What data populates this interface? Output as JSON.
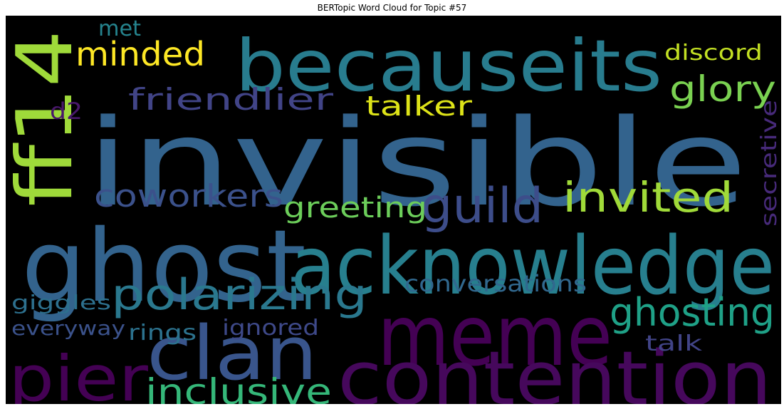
{
  "title": "BERTopic Word Cloud for Topic #57",
  "words": [
    {
      "text": "invisible",
      "color": "#33638d"
    },
    {
      "text": "ghost",
      "color": "#33638d"
    },
    {
      "text": "acknowledge",
      "color": "#277f8e"
    },
    {
      "text": "meme",
      "color": "#440154"
    },
    {
      "text": "becauseits",
      "color": "#287c8e"
    },
    {
      "text": "contention",
      "color": "#46085c"
    },
    {
      "text": "clan",
      "color": "#39558c"
    },
    {
      "text": "ff14",
      "color": "#9fda3a"
    },
    {
      "text": "pier",
      "color": "#440154"
    },
    {
      "text": "polarizing",
      "color": "#2a788e"
    },
    {
      "text": "guild",
      "color": "#3d4d8a"
    },
    {
      "text": "invited",
      "color": "#a0da39"
    },
    {
      "text": "ghosting",
      "color": "#1fa187"
    },
    {
      "text": "inclusive",
      "color": "#35b779"
    },
    {
      "text": "coworkers",
      "color": "#3b518b"
    },
    {
      "text": "friendlier",
      "color": "#414487"
    },
    {
      "text": "glory",
      "color": "#7ad151"
    },
    {
      "text": "minded",
      "color": "#fde725"
    },
    {
      "text": "greeting",
      "color": "#6ccd5a"
    },
    {
      "text": "talker",
      "color": "#dde318"
    },
    {
      "text": "conversations",
      "color": "#31688e"
    },
    {
      "text": "discord",
      "color": "#c2df23"
    },
    {
      "text": "secretive",
      "color": "#472a7a"
    },
    {
      "text": "giggles",
      "color": "#2d708e"
    },
    {
      "text": "everyway",
      "color": "#3b528b"
    },
    {
      "text": "rings",
      "color": "#2c728e"
    },
    {
      "text": "ignored",
      "color": "#3e4989"
    },
    {
      "text": "talk",
      "color": "#414487"
    },
    {
      "text": "met",
      "color": "#25848e"
    },
    {
      "text": "d2",
      "color": "#48186a"
    }
  ]
}
